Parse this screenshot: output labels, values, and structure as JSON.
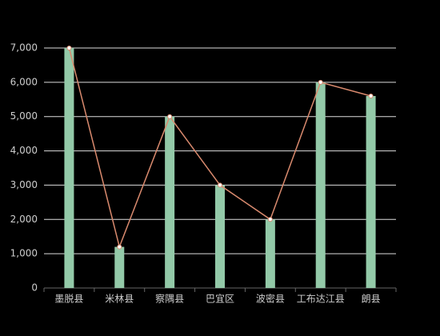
{
  "chart_data": {
    "type": "bar",
    "categories": [
      "墨脱县",
      "米林县",
      "察隅县",
      "巴宜区",
      "波密县",
      "工布达江县",
      "朗县"
    ],
    "series": [
      {
        "type": "bar",
        "color": "#93c9a8",
        "values": [
          7000,
          1200,
          5000,
          3000,
          2000,
          6000,
          5600
        ]
      },
      {
        "type": "line",
        "color": "#d98a6e",
        "values": [
          7000,
          1200,
          5000,
          3000,
          2000,
          6000,
          5600
        ]
      }
    ],
    "ylim": [
      0,
      7000
    ],
    "yticks": [
      0,
      {
        "value": 1000,
        "label": "1,000"
      },
      {
        "value": 2000,
        "label": "2,000"
      },
      {
        "value": 3000,
        "label": "3,000"
      },
      {
        "value": 4000,
        "label": "4,000"
      },
      {
        "value": 5000,
        "label": "5,000"
      },
      {
        "value": 6000,
        "label": "6,000"
      },
      {
        "value": 7000,
        "label": "7,000"
      }
    ],
    "grid": true
  }
}
